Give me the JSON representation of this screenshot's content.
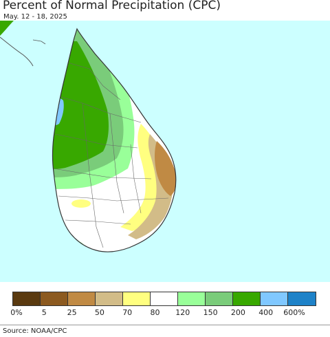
{
  "header": {
    "title": "Percent of Normal Precipitation (CPC)",
    "subtitle": "May. 12 - 18, 2025"
  },
  "map": {
    "ocean_color": "#ccffff",
    "land_color": "#ffffff",
    "border_color": "#555555"
  },
  "legend": {
    "colors": [
      "#5a3a10",
      "#8c5a20",
      "#c08a44",
      "#d2bc88",
      "#ffff80",
      "#ffffff",
      "#99ff99",
      "#7acc7a",
      "#38a800",
      "#80c8ff",
      "#1e82c8"
    ],
    "labels": [
      "0%",
      "5",
      "25",
      "50",
      "70",
      "80",
      "120",
      "150",
      "200",
      "400",
      "600%"
    ]
  },
  "footer": {
    "source": "Source: NOAA/CPC"
  }
}
